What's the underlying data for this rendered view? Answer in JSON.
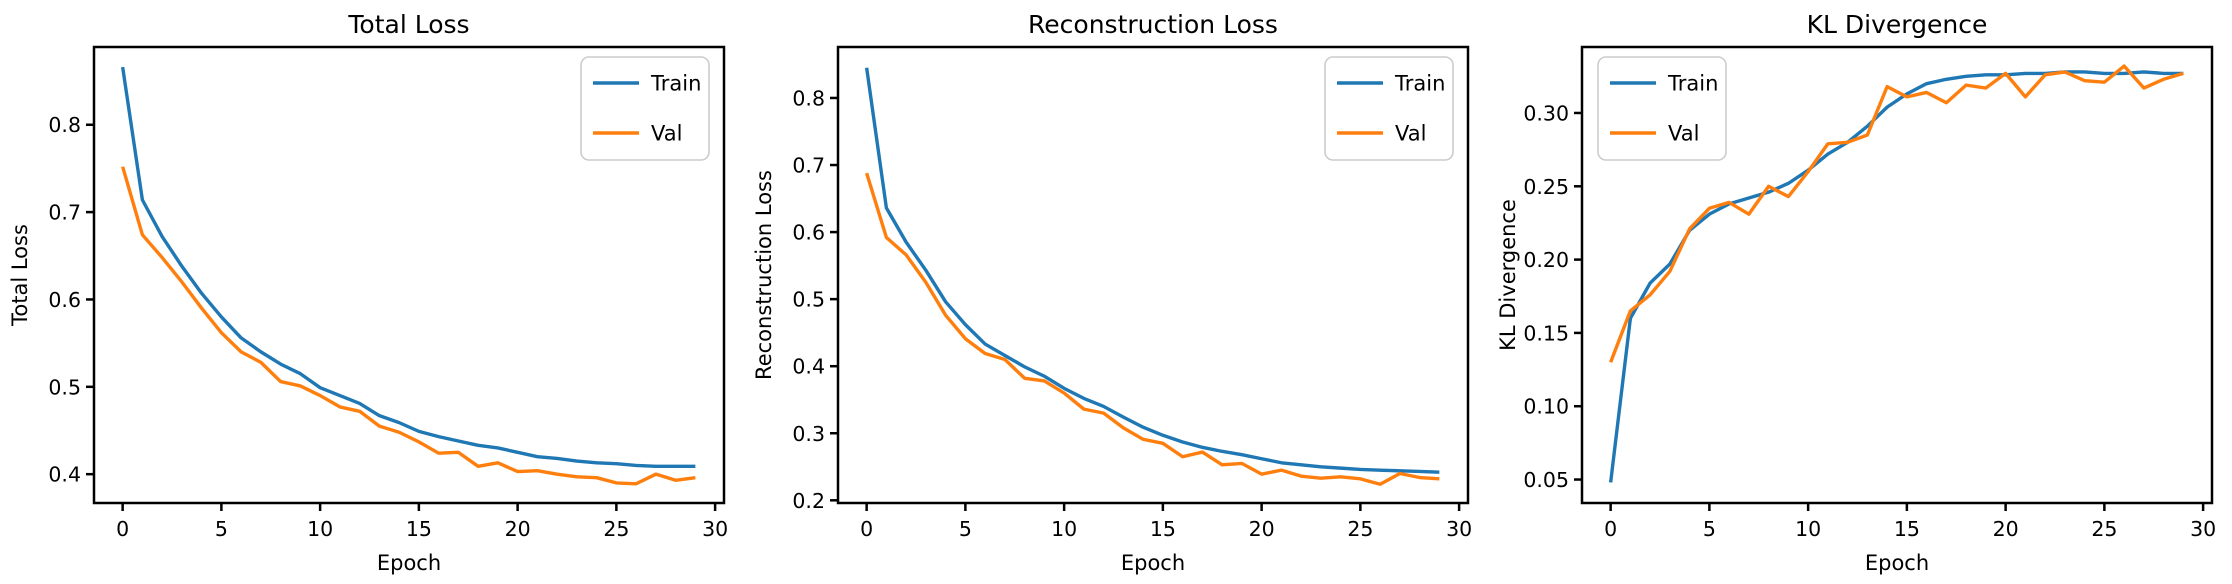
{
  "figure": {
    "background": "#ffffff",
    "axis_color": "#000000",
    "text_color": "#000000",
    "legend_border_color": "#cccccc",
    "legend_background": "#ffffff"
  },
  "chart_data": [
    {
      "type": "line",
      "slug": "total-loss",
      "title": "Total Loss",
      "xlabel": "Epoch",
      "ylabel": "Total Loss",
      "grid": false,
      "legend_position": "upper-right",
      "legend_entries": [
        "Train",
        "Val"
      ],
      "x": [
        0,
        1,
        2,
        3,
        4,
        5,
        6,
        7,
        8,
        9,
        10,
        11,
        12,
        13,
        14,
        15,
        16,
        17,
        18,
        19,
        20,
        21,
        22,
        23,
        24,
        25,
        26,
        27,
        28,
        29
      ],
      "xlim": [
        -1.45,
        30.45
      ],
      "ylim": [
        0.367,
        0.889
      ],
      "xticks": [
        0,
        5,
        10,
        15,
        20,
        25,
        30
      ],
      "xtick_labels": [
        "0",
        "5",
        "10",
        "15",
        "20",
        "25",
        "30"
      ],
      "yticks": [
        0.4,
        0.5,
        0.6,
        0.7,
        0.8
      ],
      "ytick_labels": [
        "0.4",
        "0.5",
        "0.6",
        "0.7",
        "0.8"
      ],
      "series": [
        {
          "name": "Train",
          "color": "#1f77b4",
          "values": [
            0.866,
            0.714,
            0.672,
            0.638,
            0.607,
            0.58,
            0.556,
            0.54,
            0.526,
            0.515,
            0.499,
            0.49,
            0.481,
            0.467,
            0.459,
            0.449,
            0.443,
            0.438,
            0.433,
            0.43,
            0.425,
            0.42,
            0.418,
            0.415,
            0.413,
            0.412,
            0.41,
            0.409,
            0.409,
            0.409
          ]
        },
        {
          "name": "Val",
          "color": "#ff7f0e",
          "values": [
            0.752,
            0.674,
            0.648,
            0.62,
            0.59,
            0.562,
            0.54,
            0.528,
            0.506,
            0.501,
            0.49,
            0.477,
            0.472,
            0.455,
            0.448,
            0.437,
            0.424,
            0.425,
            0.409,
            0.413,
            0.403,
            0.404,
            0.4,
            0.397,
            0.396,
            0.39,
            0.389,
            0.4,
            0.393,
            0.396
          ]
        }
      ]
    },
    {
      "type": "line",
      "slug": "reconstruction-loss",
      "title": "Reconstruction Loss",
      "xlabel": "Epoch",
      "ylabel": "Reconstruction Loss",
      "grid": false,
      "legend_position": "upper-right",
      "legend_entries": [
        "Train",
        "Val"
      ],
      "x": [
        0,
        1,
        2,
        3,
        4,
        5,
        6,
        7,
        8,
        9,
        10,
        11,
        12,
        13,
        14,
        15,
        16,
        17,
        18,
        19,
        20,
        21,
        22,
        23,
        24,
        25,
        26,
        27,
        28,
        29
      ],
      "xlim": [
        -1.45,
        30.45
      ],
      "ylim": [
        0.196,
        0.876
      ],
      "xticks": [
        0,
        5,
        10,
        15,
        20,
        25,
        30
      ],
      "xtick_labels": [
        "0",
        "5",
        "10",
        "15",
        "20",
        "25",
        "30"
      ],
      "yticks": [
        0.2,
        0.3,
        0.4,
        0.5,
        0.6,
        0.7,
        0.8
      ],
      "ytick_labels": [
        "0.2",
        "0.3",
        "0.4",
        "0.5",
        "0.6",
        "0.7",
        "0.8"
      ],
      "series": [
        {
          "name": "Train",
          "color": "#1f77b4",
          "values": [
            0.845,
            0.636,
            0.585,
            0.543,
            0.496,
            0.462,
            0.433,
            0.416,
            0.399,
            0.385,
            0.367,
            0.352,
            0.34,
            0.324,
            0.309,
            0.297,
            0.287,
            0.279,
            0.273,
            0.268,
            0.262,
            0.256,
            0.253,
            0.25,
            0.248,
            0.246,
            0.245,
            0.244,
            0.243,
            0.242
          ]
        },
        {
          "name": "Val",
          "color": "#ff7f0e",
          "values": [
            0.688,
            0.592,
            0.566,
            0.525,
            0.476,
            0.441,
            0.419,
            0.41,
            0.382,
            0.378,
            0.36,
            0.336,
            0.33,
            0.308,
            0.291,
            0.285,
            0.265,
            0.272,
            0.253,
            0.255,
            0.239,
            0.245,
            0.236,
            0.233,
            0.235,
            0.232,
            0.224,
            0.24,
            0.234,
            0.232
          ]
        }
      ]
    },
    {
      "type": "line",
      "slug": "kl-divergence",
      "title": "KL Divergence",
      "xlabel": "Epoch",
      "ylabel": "KL Divergence",
      "grid": false,
      "legend_position": "upper-left",
      "legend_entries": [
        "Train",
        "Val"
      ],
      "x": [
        0,
        1,
        2,
        3,
        4,
        5,
        6,
        7,
        8,
        9,
        10,
        11,
        12,
        13,
        14,
        15,
        16,
        17,
        18,
        19,
        20,
        21,
        22,
        23,
        24,
        25,
        26,
        27,
        28,
        29
      ],
      "xlim": [
        -1.45,
        30.45
      ],
      "ylim": [
        0.034,
        0.345
      ],
      "xticks": [
        0,
        5,
        10,
        15,
        20,
        25,
        30
      ],
      "xtick_labels": [
        "0",
        "5",
        "10",
        "15",
        "20",
        "25",
        "30"
      ],
      "yticks": [
        0.05,
        0.1,
        0.15,
        0.2,
        0.25,
        0.3
      ],
      "ytick_labels": [
        "0.05",
        "0.10",
        "0.15",
        "0.20",
        "0.25",
        "0.30"
      ],
      "series": [
        {
          "name": "Train",
          "color": "#1f77b4",
          "values": [
            0.048,
            0.16,
            0.184,
            0.197,
            0.22,
            0.231,
            0.238,
            0.242,
            0.246,
            0.252,
            0.261,
            0.272,
            0.28,
            0.291,
            0.304,
            0.313,
            0.32,
            0.323,
            0.325,
            0.326,
            0.326,
            0.327,
            0.327,
            0.328,
            0.328,
            0.327,
            0.327,
            0.328,
            0.327,
            0.327
          ]
        },
        {
          "name": "Val",
          "color": "#ff7f0e",
          "values": [
            0.13,
            0.165,
            0.176,
            0.192,
            0.221,
            0.235,
            0.239,
            0.231,
            0.25,
            0.243,
            0.26,
            0.279,
            0.28,
            0.285,
            0.318,
            0.311,
            0.314,
            0.307,
            0.319,
            0.317,
            0.327,
            0.311,
            0.326,
            0.328,
            0.322,
            0.321,
            0.332,
            0.317,
            0.323,
            0.327
          ]
        }
      ]
    }
  ]
}
